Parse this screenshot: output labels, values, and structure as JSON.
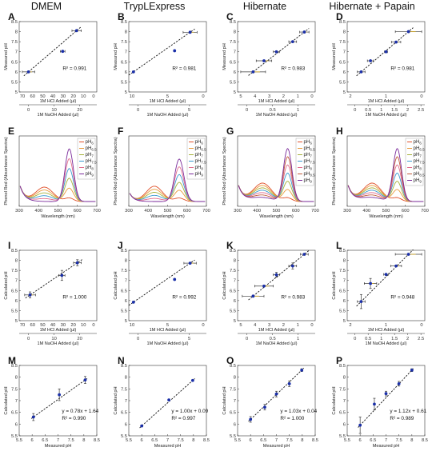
{
  "column_titles": [
    "DMEM",
    "TrypLExpress",
    "Hibernate",
    "Hibernate + Papain"
  ],
  "panel_letters": [
    "A",
    "B",
    "C",
    "D",
    "E",
    "F",
    "G",
    "H",
    "I",
    "J",
    "K",
    "L",
    "M",
    "N",
    "O",
    "P"
  ],
  "colors": {
    "point": "#1a2fa8",
    "fit": "#111111",
    "hcl_err": "#3a3a3a",
    "naoh_err": "#c9a227"
  },
  "spectra_colors": {
    "pH6": "#e0502a",
    "pH6.5": "#e89a3a",
    "pH7": "#a6b23a",
    "pH7.5": "#3a9ad0",
    "pH8": "#e06a8a",
    "pH8.5": "#c05a3a",
    "pH9": "#7a2a9a"
  },
  "chart_data": [
    {
      "panel": "A",
      "type": "scatter",
      "ylabel": "Measured pH",
      "xlabel_top": "1M HCl Added (µl)",
      "xlabel_bottom": "1M NaOH Added (µl)",
      "top_ticks": [
        "70",
        "60",
        "50",
        "40",
        "30",
        "20",
        "10",
        "0"
      ],
      "bottom_ticks": [
        "0",
        "10",
        "20"
      ],
      "ylim": [
        5,
        8.5
      ],
      "yticks": [
        "5",
        "5.5",
        "6",
        "6.5",
        "7",
        "7.5",
        "8",
        "8.5"
      ],
      "annotation": "R² = 0.991",
      "points": [
        {
          "x": 0.12,
          "y": 6.0,
          "xerr": 0.08
        },
        {
          "x": 0.56,
          "y": 7.02,
          "xerr": 0.03
        },
        {
          "x": 0.74,
          "y": 8.05,
          "xerr": 0.06
        }
      ]
    },
    {
      "panel": "B",
      "type": "scatter",
      "ylabel": "Measured pH",
      "xlabel_top": "1M HCl Added (µl)",
      "xlabel_bottom": "1M NaOH Added (µl)",
      "top_ticks": [
        "10",
        "5",
        "0"
      ],
      "bottom_ticks": [
        "0",
        "5"
      ],
      "ylim": [
        5,
        8.5
      ],
      "yticks": [
        "5",
        "5.5",
        "6",
        "6.5",
        "7",
        "7.5",
        "8",
        "8.5"
      ],
      "annotation": "R² = 0.981",
      "points": [
        {
          "x": 0.06,
          "y": 6.0,
          "xerr": 0.0
        },
        {
          "x": 0.59,
          "y": 7.05,
          "xerr": 0.0
        },
        {
          "x": 0.79,
          "y": 7.97,
          "xerr": 0.09
        }
      ]
    },
    {
      "panel": "C",
      "type": "scatter",
      "ylabel": "Measured pH",
      "xlabel_top": "1M HCl Added (µl)",
      "xlabel_bottom": "1M NaOH Added (µl)",
      "top_ticks": [
        "5",
        "4",
        "3",
        "2",
        "1",
        "0"
      ],
      "bottom_ticks": [
        "0",
        "0.5",
        "1"
      ],
      "ylim": [
        5,
        8.5
      ],
      "yticks": [
        "5",
        "5.5",
        "6",
        "6.5",
        "7",
        "7.5",
        "8",
        "8.5"
      ],
      "annotation": "R² = 0.983",
      "points": [
        {
          "x": 0.2,
          "y": 6.0,
          "xerr": 0.16
        },
        {
          "x": 0.34,
          "y": 6.55,
          "xerr": 0.1
        },
        {
          "x": 0.5,
          "y": 7.0,
          "xerr": 0.04
        },
        {
          "x": 0.71,
          "y": 7.5,
          "xerr": 0.05
        },
        {
          "x": 0.86,
          "y": 7.98,
          "xerr": 0.06
        }
      ]
    },
    {
      "panel": "D",
      "type": "scatter",
      "ylabel": "Measured pH",
      "xlabel_top": "1M HCl Added (µl)",
      "xlabel_bottom": "1M NaOH Added (µl)",
      "top_ticks": [
        "2",
        "1",
        "0"
      ],
      "bottom_ticks": [
        "0",
        "0.5",
        "1",
        "1.5",
        "2",
        "2.5"
      ],
      "ylim": [
        5,
        8.5
      ],
      "yticks": [
        "5",
        "5.5",
        "6",
        "6.5",
        "7",
        "7.5",
        "8",
        "8.5"
      ],
      "annotation": "R² = 0.981",
      "points": [
        {
          "x": 0.18,
          "y": 6.0,
          "xerr": 0.05
        },
        {
          "x": 0.3,
          "y": 6.55,
          "xerr": 0.04
        },
        {
          "x": 0.5,
          "y": 7.0,
          "xerr": 0.02
        },
        {
          "x": 0.63,
          "y": 7.48,
          "xerr": 0.06
        },
        {
          "x": 0.79,
          "y": 8.0,
          "xerr": 0.17
        }
      ]
    },
    {
      "panel": "E",
      "type": "line",
      "ylabel": "Phenol Red (Absorbance Spectra)",
      "xlabel": "Wavelength (nm)",
      "xlim": [
        300,
        700
      ],
      "xticks": [
        "300",
        "400",
        "500",
        "600",
        "700"
      ],
      "legend": [
        "6",
        "6.5",
        "7",
        "7.5",
        "8",
        "9"
      ]
    },
    {
      "panel": "F",
      "type": "line",
      "ylabel": "Phenol Red (Absorbance Spectra)",
      "xlabel": "Wavelength (nm)",
      "xlim": [
        300,
        700
      ],
      "xticks": [
        "300",
        "400",
        "500",
        "600",
        "700"
      ],
      "legend": [
        "6",
        "6.5",
        "7",
        "7.5",
        "8",
        "9"
      ]
    },
    {
      "panel": "G",
      "type": "line",
      "ylabel": "Phenol Red (Absorbance Spectra)",
      "xlabel": "Wavelength (nm)",
      "xlim": [
        300,
        700
      ],
      "xticks": [
        "300",
        "400",
        "500",
        "600",
        "700"
      ],
      "legend": [
        "6",
        "6.5",
        "7",
        "7.5",
        "8",
        "8.5",
        "9"
      ]
    },
    {
      "panel": "H",
      "type": "line",
      "ylabel": "Phenol Red (Absorbance Spectra)",
      "xlabel": "Wavelength (nm)",
      "xlim": [
        300,
        700
      ],
      "xticks": [
        "300",
        "400",
        "500",
        "600",
        "700"
      ],
      "legend": [
        "6",
        "6.5",
        "7",
        "7.5",
        "8",
        "8.5",
        "9"
      ]
    },
    {
      "panel": "I",
      "type": "scatter",
      "ylabel": "Calculated pH",
      "xlabel_top": "1M HCl Added (µl)",
      "xlabel_bottom": "1M NaOH Added (µl)",
      "top_ticks": [
        "70",
        "60",
        "50",
        "40",
        "30",
        "20",
        "10",
        "0"
      ],
      "bottom_ticks": [
        "0",
        "10",
        "20"
      ],
      "ylim": [
        5,
        8.5
      ],
      "yticks": [
        "5",
        "5.5",
        "6",
        "6.5",
        "7",
        "7.5",
        "8",
        "8.5"
      ],
      "annotation": "R² = 1.000",
      "points": [
        {
          "x": 0.14,
          "y": 6.28,
          "xerr": 0.07,
          "yerr": 0.15
        },
        {
          "x": 0.55,
          "y": 7.25,
          "xerr": 0.04,
          "yerr": 0.25
        },
        {
          "x": 0.75,
          "y": 7.88,
          "xerr": 0.05,
          "yerr": 0.15
        }
      ]
    },
    {
      "panel": "J",
      "type": "scatter",
      "ylabel": "Calculated pH",
      "xlabel_top": "1M HCl Added (µl)",
      "xlabel_bottom": "1M NaOH Added (µl)",
      "top_ticks": [
        "10",
        "5",
        "0"
      ],
      "bottom_ticks": [
        "0",
        "5"
      ],
      "ylim": [
        5,
        8.5
      ],
      "yticks": [
        "5",
        "5.5",
        "6",
        "6.5",
        "7",
        "7.5",
        "8",
        "8.5"
      ],
      "annotation": "R² = 0.992",
      "points": [
        {
          "x": 0.06,
          "y": 5.92,
          "xerr": 0.0
        },
        {
          "x": 0.59,
          "y": 7.05,
          "xerr": 0.0
        },
        {
          "x": 0.79,
          "y": 7.86,
          "xerr": 0.08
        }
      ]
    },
    {
      "panel": "K",
      "type": "scatter",
      "ylabel": "Calculated pH",
      "xlabel_top": "1M HCl Added (µl)",
      "xlabel_bottom": "1M NaOH Added (µl)",
      "top_ticks": [
        "5",
        "4",
        "3",
        "2",
        "1",
        "0"
      ],
      "bottom_ticks": [
        "0",
        "0.5",
        "1"
      ],
      "ylim": [
        5,
        8.5
      ],
      "yticks": [
        "5",
        "5.5",
        "6",
        "6.5",
        "7",
        "7.5",
        "8",
        "8.5"
      ],
      "annotation": "R² = 0.983",
      "points": [
        {
          "x": 0.2,
          "y": 6.22,
          "xerr": 0.14
        },
        {
          "x": 0.34,
          "y": 6.72,
          "xerr": 0.12
        },
        {
          "x": 0.5,
          "y": 7.28,
          "xerr": 0.04,
          "yerr": 0.12
        },
        {
          "x": 0.71,
          "y": 7.72,
          "xerr": 0.05,
          "yerr": 0.15
        },
        {
          "x": 0.86,
          "y": 8.3,
          "xerr": 0.05
        }
      ]
    },
    {
      "panel": "L",
      "type": "scatter",
      "ylabel": "Calculated pH",
      "xlabel_top": "1M HCl Added (µl)",
      "xlabel_bottom": "1M NaOH Added (µl)",
      "top_ticks": [
        "2",
        "1",
        "0"
      ],
      "bottom_ticks": [
        "0",
        "0.5",
        "1",
        "1.5",
        "2",
        "2.5"
      ],
      "ylim": [
        5,
        8.5
      ],
      "yticks": [
        "5",
        "5.5",
        "6",
        "6.5",
        "7",
        "7.5",
        "8",
        "8.5"
      ],
      "annotation": "R² = 0.948",
      "points": [
        {
          "x": 0.18,
          "y": 5.95,
          "xerr": 0.05,
          "yerr": 0.35
        },
        {
          "x": 0.3,
          "y": 6.85,
          "xerr": 0.08,
          "yerr": 0.25
        },
        {
          "x": 0.5,
          "y": 7.3,
          "xerr": 0.03
        },
        {
          "x": 0.63,
          "y": 7.72,
          "xerr": 0.07
        },
        {
          "x": 0.79,
          "y": 8.3,
          "xerr": 0.17
        }
      ]
    },
    {
      "panel": "M",
      "type": "scatter",
      "ylabel": "Calculated pH",
      "xlabel": "Measured pH",
      "xlim": [
        5.5,
        8.5
      ],
      "xticks": [
        "5.5",
        "6",
        "6.5",
        "7",
        "7.5",
        "8",
        "8.5"
      ],
      "ylim": [
        5.5,
        8.5
      ],
      "yticks": [
        "5.5",
        "6",
        "6.5",
        "7",
        "7.5",
        "8",
        "8.5"
      ],
      "equation": "y = 0.78x + 1.64",
      "annotation": "R² = 0.990",
      "points": [
        {
          "x": 6.05,
          "y": 6.3,
          "yerr": 0.15
        },
        {
          "x": 7.05,
          "y": 7.25,
          "yerr": 0.25
        },
        {
          "x": 8.05,
          "y": 7.88,
          "yerr": 0.15
        }
      ]
    },
    {
      "panel": "N",
      "type": "scatter",
      "ylabel": "Calculated pH",
      "xlabel": "Measured pH",
      "xlim": [
        5.5,
        8.5
      ],
      "xticks": [
        "5.5",
        "6",
        "6.5",
        "7",
        "7.5",
        "8",
        "8.5"
      ],
      "ylim": [
        5.5,
        8.5
      ],
      "yticks": [
        "5.5",
        "6",
        "6.5",
        "7",
        "7.5",
        "8",
        "8.5"
      ],
      "equation": "y = 1.00x + 0.09",
      "annotation": "R² = 0.997",
      "points": [
        {
          "x": 6.0,
          "y": 5.92
        },
        {
          "x": 7.05,
          "y": 7.03
        },
        {
          "x": 7.97,
          "y": 7.86
        }
      ]
    },
    {
      "panel": "O",
      "type": "scatter",
      "ylabel": "Calculated pH",
      "xlabel": "Measured pH",
      "xlim": [
        5.5,
        8.5
      ],
      "xticks": [
        "5.5",
        "6",
        "6.5",
        "7",
        "7.5",
        "8",
        "8.5"
      ],
      "ylim": [
        5.5,
        8.5
      ],
      "yticks": [
        "5.5",
        "6",
        "6.5",
        "7",
        "7.5",
        "8",
        "8.5"
      ],
      "equation": "y = 1.03x + 0.04",
      "annotation": "R² = 1.000",
      "points": [
        {
          "x": 6.0,
          "y": 6.2,
          "yerr": 0.12
        },
        {
          "x": 6.55,
          "y": 6.72,
          "yerr": 0.12
        },
        {
          "x": 7.0,
          "y": 7.28,
          "yerr": 0.12
        },
        {
          "x": 7.5,
          "y": 7.72,
          "yerr": 0.12
        },
        {
          "x": 7.98,
          "y": 8.3,
          "yerr": 0.06
        }
      ]
    },
    {
      "panel": "P",
      "type": "scatter",
      "ylabel": "Calculated pH",
      "xlabel": "Measured pH",
      "xlim": [
        5.5,
        8.5
      ],
      "xticks": [
        "5.5",
        "6",
        "6.5",
        "7",
        "7.5",
        "8",
        "8.5"
      ],
      "ylim": [
        5.5,
        8.5
      ],
      "yticks": [
        "5.5",
        "6",
        "6.5",
        "7",
        "7.5",
        "8",
        "8.5"
      ],
      "equation": "y = 1.12x + 0.61",
      "annotation": "R² = 0.989",
      "points": [
        {
          "x": 6.0,
          "y": 5.95,
          "yerr": 0.35
        },
        {
          "x": 6.55,
          "y": 6.85,
          "yerr": 0.25
        },
        {
          "x": 7.0,
          "y": 7.3,
          "yerr": 0.1
        },
        {
          "x": 7.5,
          "y": 7.72,
          "yerr": 0.1
        },
        {
          "x": 8.0,
          "y": 8.3,
          "yerr": 0.06
        }
      ]
    }
  ]
}
